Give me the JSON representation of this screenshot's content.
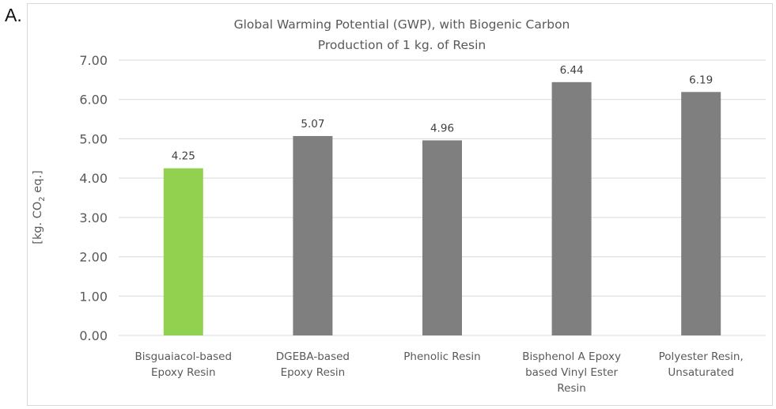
{
  "panel_label": "A.",
  "chart_data": {
    "type": "bar",
    "title_lines": [
      "Global Warming Potential (GWP), with Biogenic Carbon",
      "Production of 1 kg. of Resin"
    ],
    "ylabel": {
      "prefix": "[kg. CO",
      "subscript": "2",
      "suffix": " eq.]"
    },
    "xlabel": "",
    "ylim": [
      0,
      7
    ],
    "yticks": [
      0,
      1,
      2,
      3,
      4,
      5,
      6,
      7
    ],
    "ytick_labels": [
      "0.00",
      "1.00",
      "2.00",
      "3.00",
      "4.00",
      "5.00",
      "6.00",
      "7.00"
    ],
    "grid": true,
    "legend": "none",
    "categories": [
      [
        "Bisguaiacol-based",
        "Epoxy Resin"
      ],
      [
        "DGEBA-based",
        "Epoxy Resin"
      ],
      [
        "Phenolic Resin"
      ],
      [
        "Bisphenol A Epoxy",
        "based Vinyl Ester",
        "Resin"
      ],
      [
        "Polyester Resin,",
        "Unsaturated"
      ]
    ],
    "values": [
      4.25,
      5.07,
      4.96,
      6.44,
      6.19
    ],
    "data_labels": [
      "4.25",
      "5.07",
      "4.96",
      "6.44",
      "6.19"
    ],
    "colors": [
      "#92d050",
      "#7f7f7f",
      "#7f7f7f",
      "#7f7f7f",
      "#7f7f7f"
    ],
    "gridline_color": "#d9d9d9"
  }
}
